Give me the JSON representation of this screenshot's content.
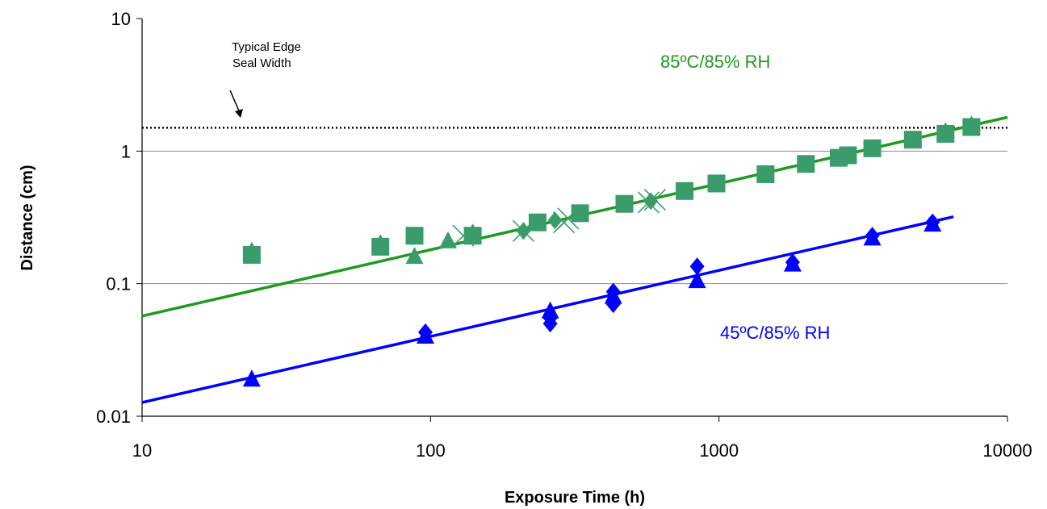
{
  "chart_data": {
    "type": "scatter",
    "x_scale": "log",
    "y_scale": "log",
    "xlim": [
      10,
      10000
    ],
    "ylim": [
      0.01,
      10
    ],
    "x_ticks": [
      "10",
      "100",
      "1000",
      "10000"
    ],
    "y_ticks": [
      "0.01",
      "0.1",
      "1",
      "10"
    ],
    "xlabel": "Exposure Time (h)",
    "ylabel": "Distance (cm)",
    "horizontal_gridlines": true,
    "vertical_gridlines": false,
    "colors": {
      "green_points": "#3a9c6a",
      "green_line": "#1e9a1e",
      "blue": "#0000ff",
      "reference": "#000000"
    },
    "reference_line": {
      "y": 1.5,
      "label_line1": "Typical Edge",
      "label_line2": "Seal Width"
    },
    "annotations": {
      "high": "85ºC/85% RH",
      "low": "45ºC/85% RH"
    },
    "series": [
      {
        "group": "85C",
        "marker": "square",
        "points": [
          [
            24,
            0.165
          ],
          [
            67,
            0.19
          ],
          [
            88,
            0.23
          ],
          [
            140,
            0.23
          ],
          [
            235,
            0.29
          ],
          [
            330,
            0.34
          ],
          [
            470,
            0.4
          ],
          [
            760,
            0.5
          ],
          [
            980,
            0.57
          ],
          [
            1450,
            0.67
          ],
          [
            2000,
            0.8
          ],
          [
            2600,
            0.89
          ],
          [
            2800,
            0.93
          ],
          [
            3400,
            1.05
          ],
          [
            4700,
            1.22
          ],
          [
            6100,
            1.35
          ],
          [
            7500,
            1.52
          ]
        ]
      },
      {
        "group": "85C",
        "marker": "triangle",
        "points": [
          [
            24,
            0.175
          ],
          [
            67,
            0.2
          ],
          [
            88,
            0.16
          ],
          [
            115,
            0.21
          ],
          [
            140,
            0.24
          ],
          [
            6100,
            1.4
          ],
          [
            7500,
            1.57
          ]
        ]
      },
      {
        "group": "85C",
        "marker": "x",
        "points": [
          [
            130,
            0.23
          ],
          [
            210,
            0.25
          ],
          [
            290,
            0.29
          ],
          [
            300,
            0.31
          ],
          [
            570,
            0.41
          ],
          [
            600,
            0.43
          ]
        ]
      },
      {
        "group": "85C",
        "marker": "diamond",
        "points": [
          [
            210,
            0.25
          ],
          [
            270,
            0.3
          ],
          [
            580,
            0.42
          ]
        ]
      },
      {
        "group": "85C",
        "marker": "fit-line",
        "points": [
          [
            10,
            0.057
          ],
          [
            10000,
            1.8
          ]
        ]
      },
      {
        "group": "45C",
        "marker": "diamond",
        "points": [
          [
            96,
            0.043
          ],
          [
            260,
            0.05
          ],
          [
            260,
            0.055
          ],
          [
            430,
            0.07
          ],
          [
            430,
            0.075
          ],
          [
            430,
            0.087
          ],
          [
            840,
            0.135
          ],
          [
            1800,
            0.145
          ],
          [
            3400,
            0.23
          ],
          [
            5500,
            0.29
          ]
        ]
      },
      {
        "group": "45C",
        "marker": "triangle",
        "points": [
          [
            24,
            0.019
          ],
          [
            96,
            0.04
          ],
          [
            260,
            0.062
          ],
          [
            430,
            0.08
          ],
          [
            840,
            0.105
          ],
          [
            1800,
            0.14
          ],
          [
            3400,
            0.22
          ],
          [
            5500,
            0.28
          ]
        ]
      },
      {
        "group": "45C",
        "marker": "fit-line",
        "points": [
          [
            10,
            0.0127
          ],
          [
            6500,
            0.32
          ]
        ]
      }
    ]
  }
}
